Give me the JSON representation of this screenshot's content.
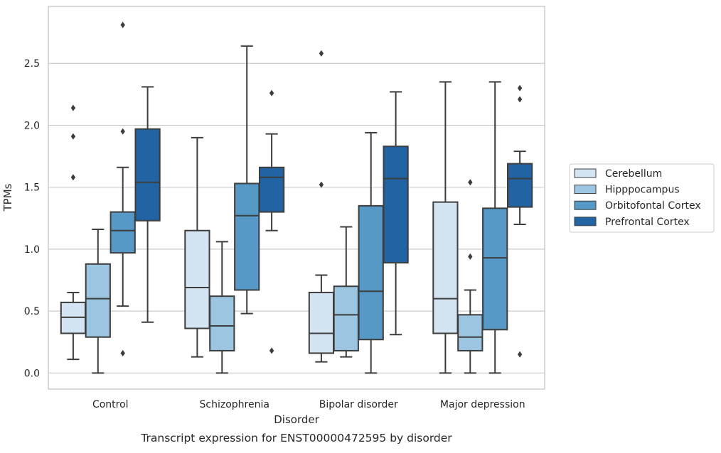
{
  "chart_data": {
    "type": "box",
    "title": "Transcript expression for ENST00000472595 by disorder",
    "xlabel": "Disorder",
    "ylabel": "TPMs",
    "ylim": [
      -0.13,
      2.96
    ],
    "yticks": [
      0.0,
      0.5,
      1.0,
      1.5,
      2.0,
      2.5
    ],
    "ytick_labels": [
      "0.0",
      "0.5",
      "1.0",
      "1.5",
      "2.0",
      "2.5"
    ],
    "grid": "horizontal",
    "legend_position": "right",
    "categories": [
      "Control",
      "Schizophrenia",
      "Bipolar disorder",
      "Major depression"
    ],
    "series": [
      {
        "name": "Cerebellum",
        "color": "#d4e4f3",
        "boxes": [
          {
            "whisker_low": 0.11,
            "q1": 0.32,
            "median": 0.45,
            "q3": 0.57,
            "whisker_high": 0.65,
            "outliers": [
              1.58,
              1.91,
              2.14
            ]
          },
          {
            "whisker_low": 0.13,
            "q1": 0.36,
            "median": 0.69,
            "q3": 1.15,
            "whisker_high": 1.9,
            "outliers": []
          },
          {
            "whisker_low": 0.09,
            "q1": 0.16,
            "median": 0.32,
            "q3": 0.65,
            "whisker_high": 0.79,
            "outliers": [
              1.52,
              2.58
            ]
          },
          {
            "whisker_low": 0.0,
            "q1": 0.32,
            "median": 0.6,
            "q3": 1.38,
            "whisker_high": 2.35,
            "outliers": []
          }
        ]
      },
      {
        "name": "Hipppocampus",
        "color": "#9cc5e1",
        "boxes": [
          {
            "whisker_low": 0.0,
            "q1": 0.29,
            "median": 0.6,
            "q3": 0.88,
            "whisker_high": 1.16,
            "outliers": []
          },
          {
            "whisker_low": 0.0,
            "q1": 0.18,
            "median": 0.38,
            "q3": 0.62,
            "whisker_high": 1.06,
            "outliers": []
          },
          {
            "whisker_low": 0.13,
            "q1": 0.18,
            "median": 0.47,
            "q3": 0.7,
            "whisker_high": 1.18,
            "outliers": []
          },
          {
            "whisker_low": 0.0,
            "q1": 0.18,
            "median": 0.29,
            "q3": 0.47,
            "whisker_high": 0.67,
            "outliers": [
              0.94,
              1.54
            ]
          }
        ]
      },
      {
        "name": "Orbitofontal Cortex",
        "color": "#5698c6",
        "boxes": [
          {
            "whisker_low": 0.54,
            "q1": 0.97,
            "median": 1.15,
            "q3": 1.3,
            "whisker_high": 1.66,
            "outliers": [
              0.16,
              1.95,
              2.81
            ]
          },
          {
            "whisker_low": 0.48,
            "q1": 0.67,
            "median": 1.27,
            "q3": 1.53,
            "whisker_high": 2.64,
            "outliers": []
          },
          {
            "whisker_low": 0.0,
            "q1": 0.27,
            "median": 0.66,
            "q3": 1.35,
            "whisker_high": 1.94,
            "outliers": []
          },
          {
            "whisker_low": 0.0,
            "q1": 0.35,
            "median": 0.93,
            "q3": 1.33,
            "whisker_high": 2.35,
            "outliers": []
          }
        ]
      },
      {
        "name": "Prefrontal Cortex",
        "color": "#2263a3",
        "boxes": [
          {
            "whisker_low": 0.41,
            "q1": 1.23,
            "median": 1.54,
            "q3": 1.97,
            "whisker_high": 2.31,
            "outliers": []
          },
          {
            "whisker_low": 1.15,
            "q1": 1.3,
            "median": 1.58,
            "q3": 1.66,
            "whisker_high": 1.93,
            "outliers": [
              0.18,
              2.26
            ]
          },
          {
            "whisker_low": 0.31,
            "q1": 0.89,
            "median": 1.57,
            "q3": 1.83,
            "whisker_high": 2.27,
            "outliers": []
          },
          {
            "whisker_low": 1.2,
            "q1": 1.34,
            "median": 1.57,
            "q3": 1.69,
            "whisker_high": 1.79,
            "outliers": [
              0.15,
              2.21,
              2.3
            ]
          }
        ]
      }
    ]
  }
}
